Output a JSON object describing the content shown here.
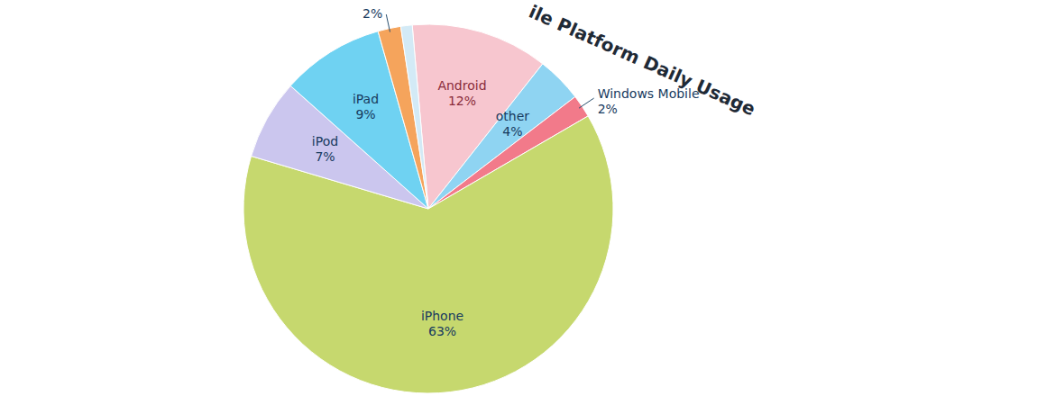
{
  "chart_data": {
    "type": "pie",
    "title": "ile Platform Daily Usage",
    "categories": [
      "Android",
      "other",
      "Windows Mobile",
      "iPhone",
      "iPod",
      "iPad",
      null,
      null
    ],
    "values": [
      12,
      4,
      2,
      63,
      7,
      9,
      2,
      1
    ],
    "value_labels": [
      "12%",
      "4%",
      "2%",
      "63%",
      "7%",
      "9%",
      "2%",
      null
    ],
    "colors": [
      "#f7c6cf",
      "#8fd4f2",
      "#f27a8a",
      "#c6d86e",
      "#cbc6ee",
      "#6fd2f2",
      "#f5a45c",
      "#d3eaf6"
    ],
    "data_labels": true
  }
}
